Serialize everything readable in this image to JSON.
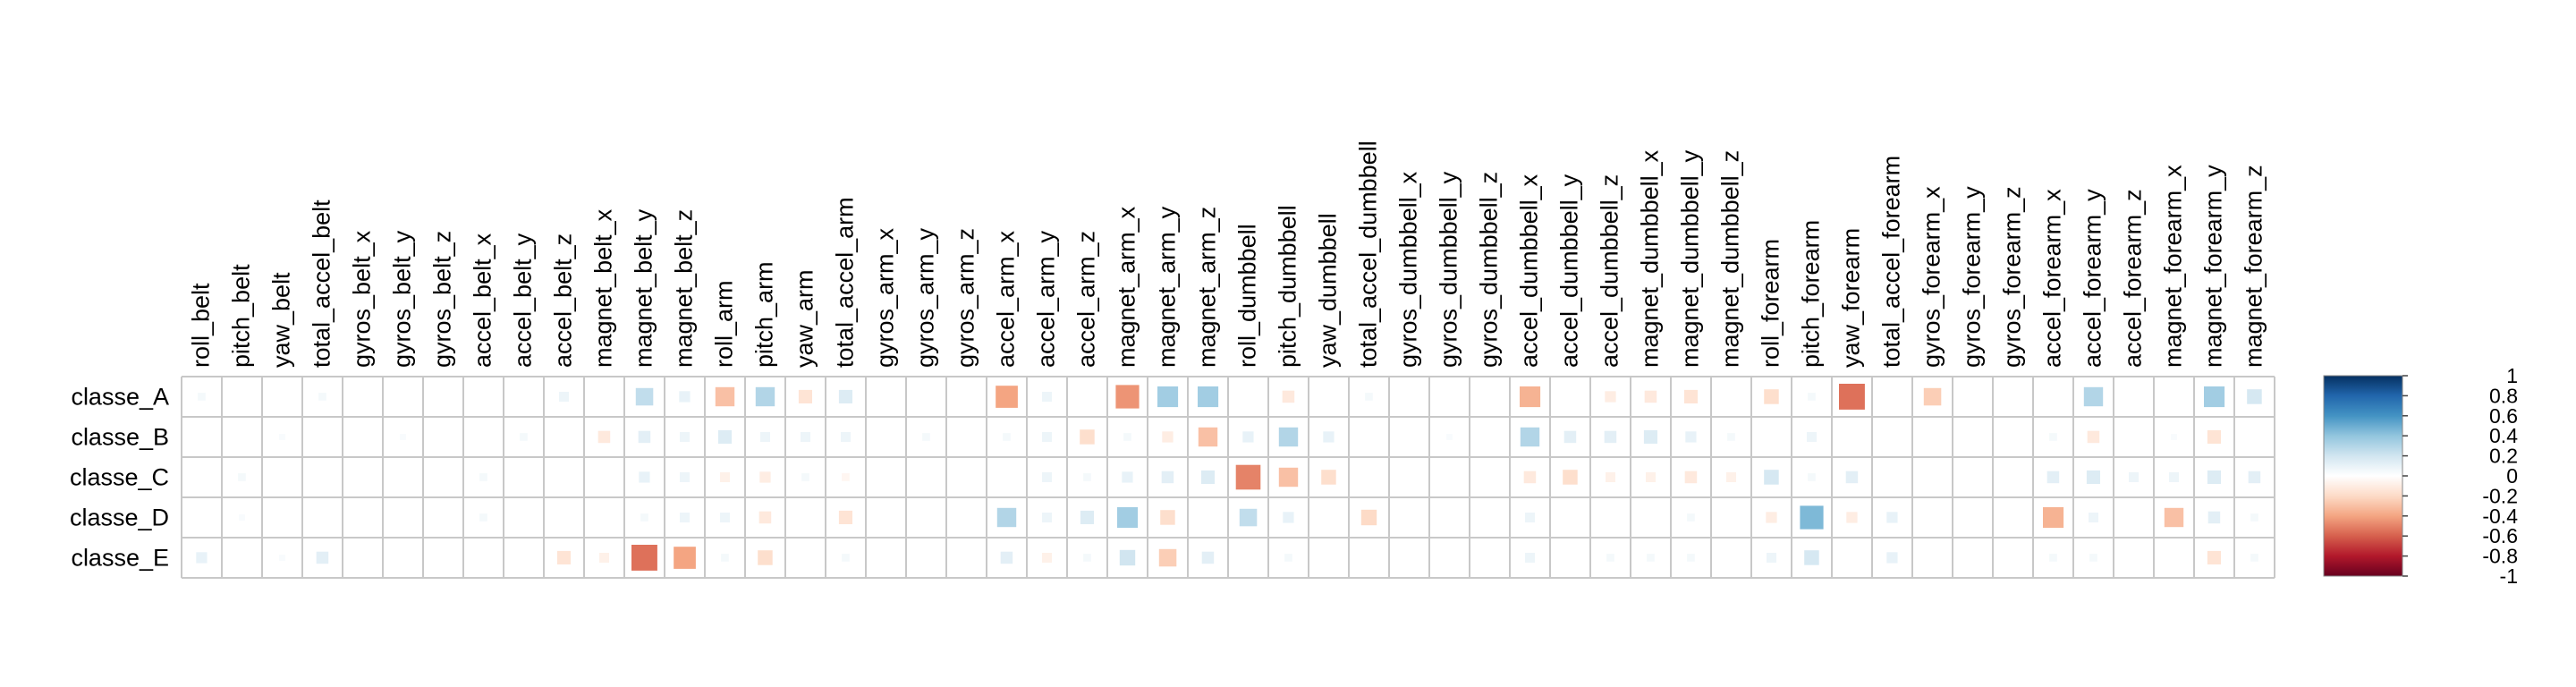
{
  "chart_data": {
    "type": "heatmap",
    "title": "",
    "xlabel": "",
    "ylabel": "",
    "value_range": [
      -1,
      1
    ],
    "rows": [
      "classe_A",
      "classe_B",
      "classe_C",
      "classe_D",
      "classe_E"
    ],
    "columns": [
      "roll_belt",
      "pitch_belt",
      "yaw_belt",
      "total_accel_belt",
      "gyros_belt_x",
      "gyros_belt_y",
      "gyros_belt_z",
      "accel_belt_x",
      "accel_belt_y",
      "accel_belt_z",
      "magnet_belt_x",
      "magnet_belt_y",
      "magnet_belt_z",
      "roll_arm",
      "pitch_arm",
      "yaw_arm",
      "total_accel_arm",
      "gyros_arm_x",
      "gyros_arm_y",
      "gyros_arm_z",
      "accel_arm_x",
      "accel_arm_y",
      "accel_arm_z",
      "magnet_arm_x",
      "magnet_arm_y",
      "magnet_arm_z",
      "roll_dumbbell",
      "pitch_dumbbell",
      "yaw_dumbbell",
      "total_accel_dumbbell",
      "gyros_dumbbell_x",
      "gyros_dumbbell_y",
      "gyros_dumbbell_z",
      "accel_dumbbell_x",
      "accel_dumbbell_y",
      "accel_dumbbell_z",
      "magnet_dumbbell_x",
      "magnet_dumbbell_y",
      "magnet_dumbbell_z",
      "roll_forearm",
      "pitch_forearm",
      "yaw_forearm",
      "total_accel_forearm",
      "gyros_forearm_x",
      "gyros_forearm_y",
      "gyros_forearm_z",
      "accel_forearm_x",
      "accel_forearm_y",
      "accel_forearm_z",
      "magnet_forearm_x",
      "magnet_forearm_y",
      "magnet_forearm_z"
    ],
    "values": [
      [
        0.05,
        0,
        0,
        0.05,
        0,
        0,
        0,
        0,
        0,
        0.08,
        0,
        0.25,
        0.1,
        -0.3,
        0.3,
        -0.15,
        0.15,
        0,
        0,
        0,
        -0.4,
        0.08,
        0,
        -0.45,
        0.35,
        0.35,
        0,
        -0.12,
        0,
        0.05,
        0,
        0,
        0,
        -0.35,
        0,
        -0.1,
        -0.12,
        -0.15,
        0,
        -0.18,
        0.05,
        -0.55,
        0,
        -0.25,
        0,
        0,
        0,
        0.3,
        0,
        0,
        0.35,
        0.18
      ],
      [
        0,
        0,
        0.03,
        0,
        0,
        0.03,
        0,
        0,
        0.05,
        0,
        -0.12,
        0.12,
        0.08,
        0.15,
        0.08,
        0.08,
        0.08,
        0,
        0.05,
        0,
        0.05,
        0.08,
        -0.18,
        0.05,
        -0.1,
        -0.3,
        0.1,
        0.3,
        0.1,
        0,
        0,
        0.03,
        0,
        0.3,
        0.12,
        0.12,
        0.15,
        0.1,
        0.05,
        0,
        0.08,
        0,
        0,
        0,
        0,
        0,
        0.05,
        -0.12,
        0,
        0.03,
        -0.15,
        0
      ],
      [
        0,
        0.05,
        0,
        0,
        0,
        0,
        0,
        0.05,
        0,
        0,
        0,
        0.1,
        0.08,
        -0.08,
        -0.1,
        0.05,
        -0.05,
        0,
        0,
        0,
        0,
        0.08,
        0.05,
        0.1,
        0.12,
        0.15,
        -0.5,
        -0.3,
        -0.18,
        0,
        0,
        0,
        0,
        -0.12,
        -0.18,
        -0.08,
        -0.08,
        -0.12,
        -0.08,
        0.18,
        0.05,
        0.12,
        0,
        0,
        0,
        0,
        0.12,
        0.15,
        0.08,
        0.08,
        0.15,
        0.12
      ],
      [
        0,
        0.03,
        0,
        0,
        0,
        0,
        0,
        0.05,
        0,
        0,
        0,
        0.05,
        0.08,
        0.08,
        -0.12,
        0,
        -0.15,
        0,
        0,
        0,
        0.3,
        0.08,
        0.15,
        0.35,
        -0.18,
        0,
        0.25,
        0.1,
        0,
        -0.2,
        0,
        0,
        0,
        0.08,
        0,
        0,
        0,
        0.05,
        0,
        -0.1,
        0.45,
        -0.1,
        0.1,
        0,
        0,
        0,
        -0.35,
        0.08,
        0,
        -0.3,
        0.12,
        0.05
      ],
      [
        0.1,
        0,
        0.03,
        0.12,
        0,
        0,
        0,
        0,
        0,
        -0.15,
        -0.08,
        -0.55,
        -0.4,
        0.05,
        -0.18,
        0,
        0.05,
        0,
        0,
        0,
        0.12,
        -0.08,
        0.05,
        0.2,
        -0.25,
        0.12,
        0,
        0.05,
        0,
        0,
        0,
        0,
        0,
        0.08,
        0,
        0.05,
        0.05,
        0.05,
        0,
        0.08,
        0.18,
        0,
        0.1,
        0,
        0,
        0,
        0.05,
        0.05,
        0,
        0,
        -0.15,
        0.05
      ]
    ],
    "legend_ticks": [
      "1",
      "0.8",
      "0.6",
      "0.4",
      "0.2",
      "0",
      "-0.2",
      "-0.4",
      "-0.6",
      "-0.8",
      "-1"
    ],
    "colors": {
      "positive": "#053061",
      "mid": "#ffffff",
      "negative": "#67001f",
      "grid": "#c8c8c8",
      "text": "#000000"
    }
  }
}
